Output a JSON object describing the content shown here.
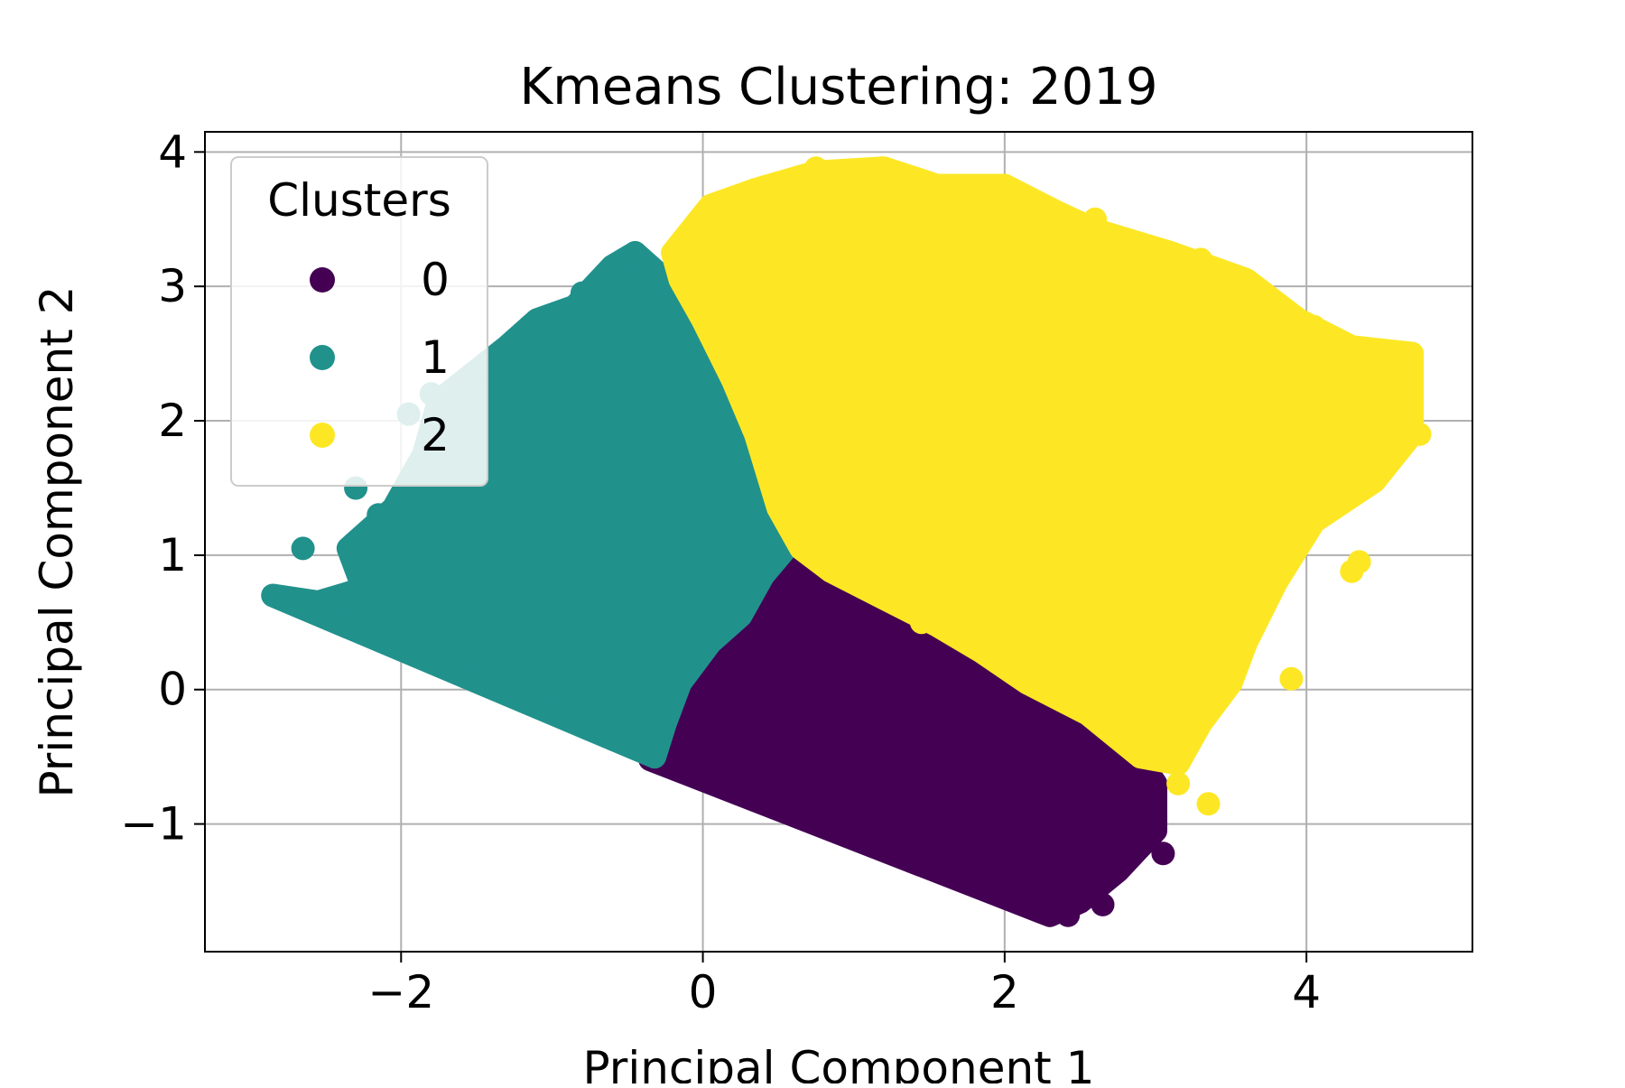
{
  "chart_data": {
    "type": "scatter",
    "title": "Kmeans Clustering: 2019",
    "xlabel": "Principal Component 1",
    "ylabel": "Principal Component 2",
    "xlim": [
      -3.3,
      5.1
    ],
    "ylim": [
      -1.95,
      4.15
    ],
    "xticks": [
      -2,
      0,
      2,
      4
    ],
    "yticks": [
      -1,
      0,
      1,
      2,
      3,
      4
    ],
    "xtick_labels": [
      "−2",
      "0",
      "2",
      "4"
    ],
    "ytick_labels": [
      "−1",
      "0",
      "1",
      "2",
      "3",
      "4"
    ],
    "grid": true,
    "legend": {
      "title": "Clusters",
      "placement": "upper-left"
    },
    "series": [
      {
        "name": "0",
        "color": "#440154",
        "outline": [
          [
            -0.35,
            -0.52
          ],
          [
            -0.2,
            -0.05
          ],
          [
            -0.05,
            0.25
          ],
          [
            0.2,
            0.45
          ],
          [
            0.35,
            0.65
          ],
          [
            0.55,
            0.9
          ],
          [
            0.75,
            1.05
          ],
          [
            1.05,
            0.85
          ],
          [
            1.35,
            0.62
          ],
          [
            1.65,
            0.38
          ],
          [
            2.0,
            0.12
          ],
          [
            2.3,
            -0.05
          ],
          [
            2.6,
            -0.22
          ],
          [
            2.85,
            -0.45
          ],
          [
            3.0,
            -0.7
          ],
          [
            3.0,
            -1.05
          ],
          [
            2.75,
            -1.35
          ],
          [
            2.5,
            -1.58
          ],
          [
            2.3,
            -1.68
          ]
        ],
        "points": [
          [
            3.05,
            -1.22
          ],
          [
            2.65,
            -1.6
          ],
          [
            2.42,
            -1.68
          ],
          [
            2.75,
            -1.32
          ],
          [
            2.9,
            -1.0
          ],
          [
            2.95,
            -0.85
          ],
          [
            2.6,
            -0.65
          ],
          [
            2.3,
            -0.25
          ],
          [
            1.8,
            0.15
          ],
          [
            1.2,
            0.55
          ],
          [
            0.8,
            0.95
          ],
          [
            0.3,
            0.62
          ],
          [
            0.0,
            0.15
          ],
          [
            -0.15,
            -0.15
          ],
          [
            2.75,
            -0.5
          ],
          [
            2.5,
            -0.4
          ],
          [
            2.1,
            -0.1
          ],
          [
            1.5,
            0.35
          ],
          [
            2.85,
            -1.2
          ],
          [
            2.6,
            -1.45
          ]
        ]
      },
      {
        "name": "1",
        "color": "#21918c",
        "outline": [
          [
            -2.85,
            0.7
          ],
          [
            -2.55,
            0.65
          ],
          [
            -2.25,
            0.75
          ],
          [
            -2.35,
            1.05
          ],
          [
            -2.05,
            1.35
          ],
          [
            -1.85,
            1.75
          ],
          [
            -1.75,
            2.15
          ],
          [
            -1.3,
            2.55
          ],
          [
            -1.1,
            2.75
          ],
          [
            -0.85,
            2.85
          ],
          [
            -0.6,
            3.15
          ],
          [
            -0.45,
            3.25
          ],
          [
            -0.25,
            3.05
          ],
          [
            -0.1,
            2.85
          ],
          [
            0.05,
            2.5
          ],
          [
            0.15,
            2.1
          ],
          [
            0.3,
            1.8
          ],
          [
            0.45,
            1.4
          ],
          [
            0.55,
            1.05
          ],
          [
            0.4,
            0.85
          ],
          [
            0.25,
            0.55
          ],
          [
            0.05,
            0.35
          ],
          [
            -0.15,
            0.05
          ],
          [
            -0.25,
            -0.25
          ],
          [
            -0.32,
            -0.5
          ]
        ],
        "points": [
          [
            -2.65,
            1.05
          ],
          [
            -2.3,
            1.5
          ],
          [
            -2.15,
            1.3
          ],
          [
            -1.95,
            2.05
          ],
          [
            -1.8,
            2.2
          ],
          [
            -1.25,
            2.55
          ],
          [
            -1.15,
            2.7
          ],
          [
            -0.8,
            2.95
          ],
          [
            -0.45,
            3.25
          ],
          [
            -0.55,
            3.05
          ],
          [
            -0.2,
            3.05
          ],
          [
            -0.05,
            2.6
          ],
          [
            -2.45,
            0.65
          ],
          [
            -1.7,
            0.9
          ],
          [
            -1.2,
            1.5
          ],
          [
            -0.8,
            1.9
          ],
          [
            -0.5,
            2.4
          ],
          [
            -1.0,
            0.6
          ],
          [
            -0.5,
            0.3
          ],
          [
            0.2,
            1.6
          ]
        ]
      },
      {
        "name": "2",
        "color": "#fde725",
        "outline": [
          [
            -0.2,
            3.25
          ],
          [
            0.05,
            3.6
          ],
          [
            0.35,
            3.72
          ],
          [
            0.75,
            3.85
          ],
          [
            1.2,
            3.88
          ],
          [
            1.55,
            3.75
          ],
          [
            2.0,
            3.75
          ],
          [
            2.35,
            3.55
          ],
          [
            2.6,
            3.42
          ],
          [
            3.1,
            3.25
          ],
          [
            3.6,
            3.05
          ],
          [
            3.95,
            2.75
          ],
          [
            4.3,
            2.55
          ],
          [
            4.7,
            2.5
          ],
          [
            4.7,
            1.9
          ],
          [
            4.45,
            1.55
          ],
          [
            4.05,
            1.25
          ],
          [
            3.8,
            0.8
          ],
          [
            3.6,
            0.35
          ],
          [
            3.5,
            0.05
          ],
          [
            3.3,
            -0.25
          ],
          [
            3.15,
            -0.55
          ],
          [
            2.9,
            -0.5
          ],
          [
            2.55,
            -0.18
          ],
          [
            2.15,
            0.05
          ],
          [
            1.85,
            0.28
          ],
          [
            1.55,
            0.48
          ],
          [
            1.2,
            0.68
          ],
          [
            0.85,
            0.88
          ],
          [
            0.65,
            1.05
          ],
          [
            0.5,
            1.35
          ],
          [
            0.35,
            1.9
          ],
          [
            0.2,
            2.3
          ],
          [
            0.0,
            2.75
          ],
          [
            -0.15,
            3.05
          ]
        ],
        "points": [
          [
            0.75,
            3.88
          ],
          [
            1.18,
            3.88
          ],
          [
            2.0,
            3.75
          ],
          [
            4.7,
            2.5
          ],
          [
            4.75,
            1.9
          ],
          [
            4.4,
            1.75
          ],
          [
            4.3,
            1.55
          ],
          [
            4.35,
            0.95
          ],
          [
            4.3,
            0.88
          ],
          [
            3.9,
            0.08
          ],
          [
            3.35,
            -0.85
          ],
          [
            3.15,
            -0.7
          ],
          [
            1.45,
            0.5
          ],
          [
            4.25,
            2.3
          ],
          [
            4.05,
            2.7
          ],
          [
            2.6,
            3.5
          ],
          [
            3.3,
            3.2
          ],
          [
            1.0,
            3.3
          ],
          [
            1.5,
            3.0
          ],
          [
            1.9,
            2.8
          ],
          [
            2.2,
            2.4
          ],
          [
            2.8,
            2.0
          ],
          [
            3.5,
            1.6
          ],
          [
            3.8,
            1.2
          ],
          [
            3.2,
            0.6
          ],
          [
            2.5,
            1.0
          ],
          [
            1.5,
            1.6
          ],
          [
            0.9,
            2.2
          ],
          [
            2.0,
            1.3
          ],
          [
            3.0,
            2.6
          ]
        ]
      }
    ]
  }
}
